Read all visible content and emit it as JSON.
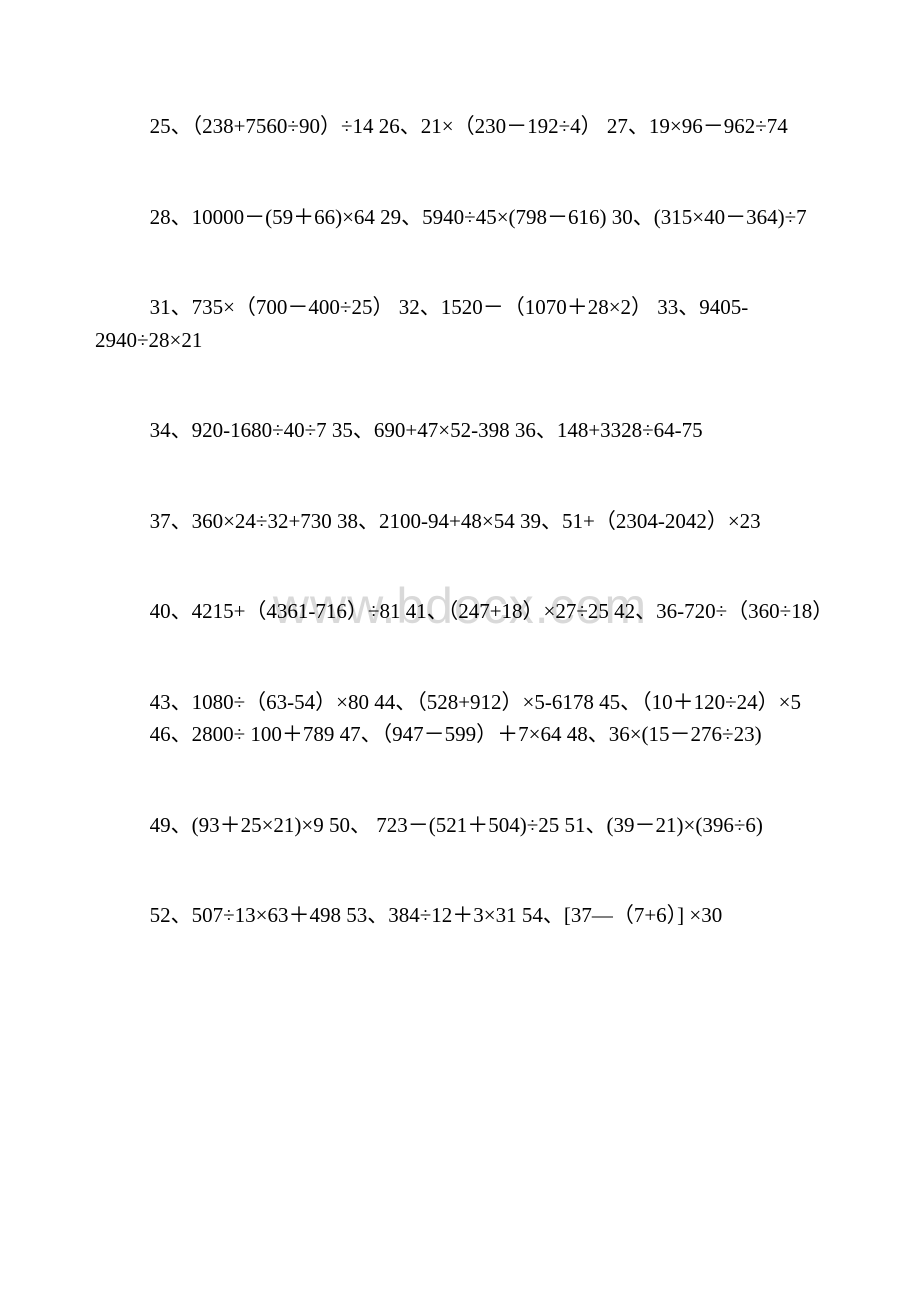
{
  "watermark": "www.bdocx.com",
  "lines": [
    "25、（238+7560÷90）÷14 26、21×（230－192÷4） 27、19×96－962÷74",
    "28、10000－(59＋66)×64 29、5940÷45×(798－616) 30、(315×40－364)÷7",
    "31、735×（700－400÷25） 32、1520－（1070＋28×2） 33、9405-2940÷28×21",
    "34、920-1680÷40÷7 35、690+47×52-398 36、148+3328÷64-75",
    "37、360×24÷32+730 38、2100-94+48×54 39、51+（2304-2042）×23",
    "40、4215+（4361-716）÷81 41、（247+18）×27÷25 42、36-720÷（360÷18）",
    "43、1080÷（63-54）×80 44、（528+912）×5-6178 45、（10＋120÷24）×5",
    "46、2800÷ 100＋789 47、（947－599）＋7×64 48、36×(15－276÷23)",
    "49、(93＋25×21)×9 50、 723－(521＋504)÷25 51、(39－21)×(396÷6)",
    "52、507÷13×63＋498 53、384÷12＋3×31 54、[37—（7+6）] ×30"
  ],
  "colors": {
    "text": "#000000",
    "background": "#ffffff",
    "watermark": "#d9d9d9"
  },
  "typography": {
    "body_fontsize": 21,
    "watermark_fontsize": 50,
    "line_height": 1.55,
    "text_indent_em": 2.6
  }
}
